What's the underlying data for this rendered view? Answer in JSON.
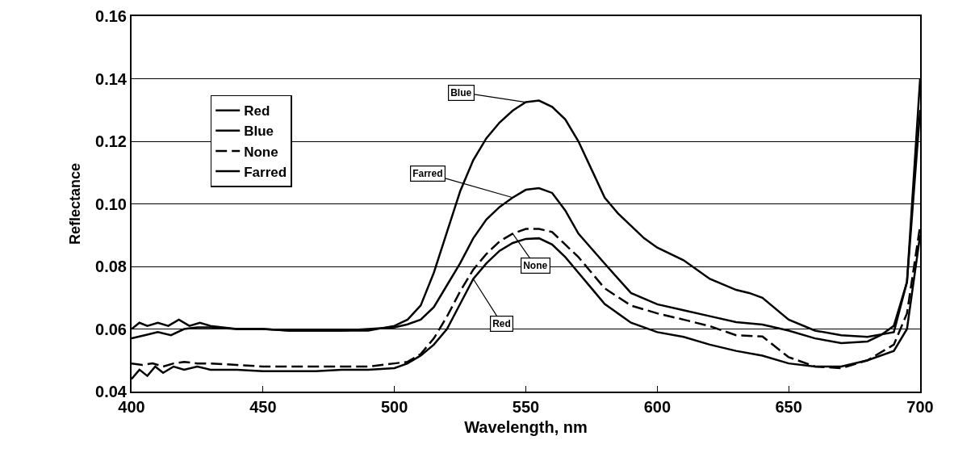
{
  "chart_data": {
    "type": "line",
    "xlabel": "Wavelength, nm",
    "ylabel": "Reflectance",
    "xlim": [
      400,
      700
    ],
    "xticks": [
      400,
      450,
      500,
      550,
      600,
      650,
      700
    ],
    "ylim": [
      0.04,
      0.16
    ],
    "yticks": [
      0.04,
      0.06,
      0.08,
      {
        "value": 0.1,
        "label": "0.10"
      },
      0.12,
      0.14,
      0.16
    ],
    "grid": "y",
    "legend": "top left",
    "marker": "none",
    "line_style": "solid",
    "series": [
      {
        "name": "Red",
        "color": "#000000",
        "x": [
          400,
          403,
          406,
          409,
          412,
          416,
          420,
          425,
          430,
          440,
          450,
          460,
          470,
          480,
          490,
          500,
          505,
          510,
          515,
          520,
          525,
          530,
          535,
          540,
          545,
          550,
          555,
          560,
          565,
          570,
          575,
          580,
          590,
          600,
          610,
          620,
          630,
          640,
          650,
          660,
          670,
          680,
          690,
          695,
          700
        ],
        "values": [
          0.044,
          0.047,
          0.045,
          0.048,
          0.046,
          0.048,
          0.047,
          0.048,
          0.047,
          0.047,
          0.0465,
          0.0465,
          0.0465,
          0.047,
          0.047,
          0.0475,
          0.049,
          0.0515,
          0.055,
          0.06,
          0.068,
          0.076,
          0.081,
          0.085,
          0.0875,
          0.0888,
          0.089,
          0.087,
          0.083,
          0.078,
          0.073,
          0.068,
          0.062,
          0.059,
          0.0575,
          0.055,
          0.053,
          0.0515,
          0.049,
          0.048,
          0.048,
          0.05,
          0.053,
          0.06,
          0.09
        ]
      },
      {
        "name": "Blue",
        "color": "#000000",
        "x": [
          400,
          403,
          406,
          410,
          414,
          418,
          422,
          426,
          430,
          440,
          450,
          460,
          470,
          480,
          490,
          500,
          505,
          510,
          515,
          520,
          525,
          530,
          535,
          540,
          545,
          550,
          555,
          560,
          565,
          570,
          575,
          580,
          585,
          590,
          595,
          600,
          610,
          620,
          630,
          635,
          640,
          650,
          660,
          670,
          680,
          690,
          695,
          700
        ],
        "values": [
          0.06,
          0.062,
          0.061,
          0.062,
          0.061,
          0.063,
          0.061,
          0.062,
          0.061,
          0.06,
          0.06,
          0.0595,
          0.0595,
          0.0595,
          0.0595,
          0.061,
          0.063,
          0.0675,
          0.078,
          0.091,
          0.104,
          0.114,
          0.121,
          0.126,
          0.1298,
          0.1325,
          0.133,
          0.131,
          0.127,
          0.12,
          0.111,
          0.102,
          0.097,
          0.093,
          0.089,
          0.086,
          0.082,
          0.076,
          0.0725,
          0.0715,
          0.07,
          0.063,
          0.0595,
          0.058,
          0.0575,
          0.059,
          0.075,
          0.14
        ]
      },
      {
        "name": "None",
        "color": "#000000",
        "line_style": "dashed",
        "x": [
          400,
          404,
          408,
          412,
          416,
          420,
          425,
          430,
          440,
          450,
          460,
          470,
          480,
          490,
          500,
          505,
          510,
          515,
          520,
          525,
          530,
          535,
          540,
          545,
          550,
          555,
          560,
          565,
          570,
          575,
          580,
          590,
          600,
          610,
          620,
          630,
          640,
          650,
          660,
          670,
          680,
          690,
          695,
          700
        ],
        "values": [
          0.049,
          0.0485,
          0.049,
          0.048,
          0.049,
          0.0495,
          0.049,
          0.049,
          0.0485,
          0.048,
          0.048,
          0.048,
          0.048,
          0.048,
          0.049,
          0.0495,
          0.052,
          0.057,
          0.064,
          0.072,
          0.079,
          0.084,
          0.088,
          0.0905,
          0.092,
          0.092,
          0.091,
          0.087,
          0.083,
          0.078,
          0.073,
          0.0675,
          0.065,
          0.063,
          0.0609,
          0.058,
          0.0576,
          0.051,
          0.048,
          0.0475,
          0.05,
          0.055,
          0.065,
          0.093
        ]
      },
      {
        "name": "Farred",
        "color": "#000000",
        "x": [
          400,
          405,
          410,
          415,
          420,
          425,
          430,
          440,
          450,
          460,
          470,
          480,
          490,
          500,
          505,
          510,
          515,
          520,
          525,
          530,
          535,
          540,
          545,
          550,
          555,
          560,
          565,
          570,
          580,
          590,
          600,
          610,
          620,
          630,
          640,
          650,
          660,
          670,
          680,
          685,
          690,
          695,
          700
        ],
        "values": [
          0.057,
          0.058,
          0.059,
          0.058,
          0.06,
          0.0605,
          0.0605,
          0.06,
          0.06,
          0.0595,
          0.0595,
          0.0595,
          0.06,
          0.0605,
          0.0615,
          0.063,
          0.067,
          0.074,
          0.081,
          0.089,
          0.095,
          0.099,
          0.102,
          0.1045,
          0.105,
          0.1035,
          0.0979,
          0.0905,
          0.0809,
          0.0715,
          0.0679,
          0.066,
          0.0641,
          0.0622,
          0.0614,
          0.0595,
          0.057,
          0.0555,
          0.056,
          0.058,
          0.061,
          0.075,
          0.13
        ]
      }
    ],
    "annotations": [
      {
        "text": "Blue",
        "x": 550,
        "y": 0.1325
      },
      {
        "text": "Farred",
        "x": 545,
        "y": 0.102
      },
      {
        "text": "None",
        "x": 545,
        "y": 0.0905
      },
      {
        "text": "Red",
        "x": 530,
        "y": 0.076
      }
    ]
  }
}
